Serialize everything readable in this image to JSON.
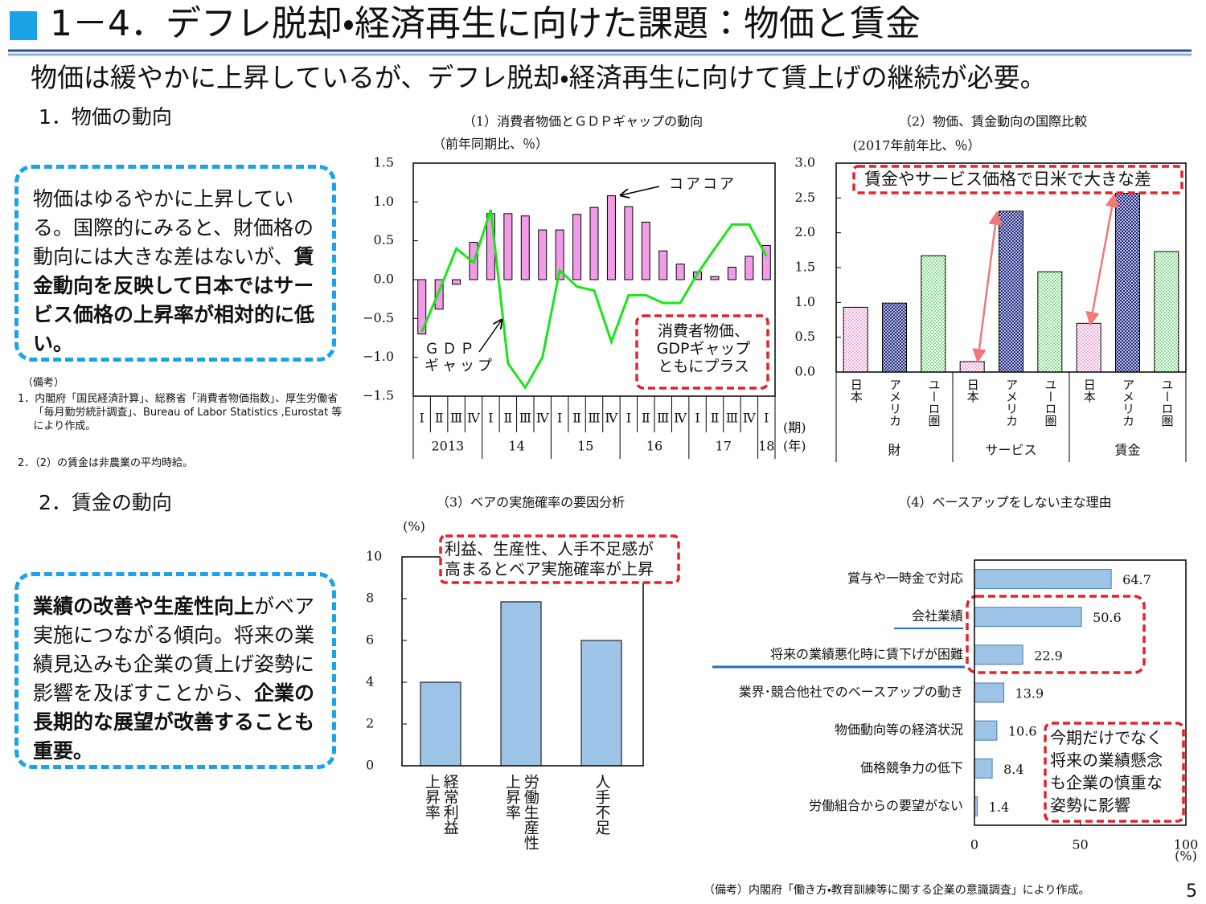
{
  "header": {
    "title": "1－4．デフレ脱却・経済再生に向けた課題：物価と賃金",
    "subtitle": "物価は緩やかに上昇しているが、デフレ脱却・経済再生に向けて賃上げの継続が必要。"
  },
  "sections": [
    "1．物価の動向",
    "2．賃金の動向"
  ],
  "boxes": [
    {
      "runs": [
        {
          "text": "物価はゆるやかに上昇している。国際的にみると、財価格の動向には大きな差はないが、",
          "bold": false
        },
        {
          "text": "賃金動向を反映して日本ではサービス価格の上昇率が相対的に低い。",
          "bold": true
        }
      ]
    },
    {
      "runs": [
        {
          "text": "業績の改善や生産性向上",
          "bold": true
        },
        {
          "text": "がベア実施につながる傾向。将来の業績見込みも企業の賃上げ姿勢に影響を及ぼすことから、",
          "bold": false
        },
        {
          "text": "企業の長期的な展望が改善することも重要。",
          "bold": true
        }
      ]
    }
  ],
  "notes": {
    "top": [
      "（備考）",
      "1．内閣府「国民経済計算」、総務省「消費者物価指数」、厚生労働省「毎月勤労統計調査」、Bureau of Labor Statistics ,Eurostat 等により作成。",
      "2．（2）の賃金は非農業の平均時給。"
    ],
    "bottom": "（備考）内閣府「働き方・教育訓練等に関する企業の意識調査」により作成。"
  },
  "page_number": "5",
  "chart_data": [
    {
      "type": "combo",
      "title": "（1）消費者物価とＧＤＰギャップの動向",
      "subtitle": "（前年同期比、％）",
      "categories": [
        "Ⅰ",
        "Ⅱ",
        "Ⅲ",
        "Ⅳ",
        "Ⅰ",
        "Ⅱ",
        "Ⅲ",
        "Ⅳ",
        "Ⅰ",
        "Ⅱ",
        "Ⅲ",
        "Ⅳ",
        "Ⅰ",
        "Ⅱ",
        "Ⅲ",
        "Ⅳ",
        "Ⅰ",
        "Ⅱ",
        "Ⅲ",
        "Ⅳ",
        "Ⅰ"
      ],
      "years": [
        "2013",
        "14",
        "15",
        "16",
        "17",
        "18"
      ],
      "x_label": "(期)",
      "year_label": "(年)",
      "ylim": [
        -1.5,
        1.5
      ],
      "yticks": [
        1.5,
        {
          "value": 1,
          "label": "1.0"
        },
        0.5,
        {
          "value": 0,
          "label": "0.0"
        },
        {
          "value": -0.5,
          "label": "−0.5"
        },
        {
          "value": -1,
          "label": "−1.0"
        },
        {
          "value": -1.5,
          "label": "−1.5"
        }
      ],
      "series": [
        {
          "name": "コアコア",
          "type": "bar",
          "color": "#f29ce8",
          "values": [
            -0.7,
            -0.38,
            -0.06,
            0.48,
            0.85,
            0.85,
            0.82,
            0.64,
            0.64,
            0.84,
            0.93,
            1.08,
            0.94,
            0.74,
            0.37,
            0.2,
            0.1,
            0.04,
            0.16,
            0.3,
            0.44
          ]
        },
        {
          "name": "ＧＤＰ\nギャップ",
          "type": "line",
          "color": "#19e619",
          "values": [
            -0.67,
            -0.15,
            0.4,
            0.22,
            0.9,
            -1.08,
            -1.39,
            -1.0,
            0.12,
            -0.09,
            -0.14,
            -0.8,
            -0.2,
            -0.2,
            -0.3,
            -0.3,
            0.08,
            0.4,
            0.71,
            0.71,
            0.3
          ]
        }
      ],
      "annotation": "消費者物価、\nGDPギャップ\nともにプラス"
    },
    {
      "type": "bar",
      "title": "（2）物価、賃金動向の国際比較",
      "subtitle": "(2017年前年比、％）",
      "categories": [
        "財",
        "サービス",
        "賃金"
      ],
      "ylim": [
        0,
        3
      ],
      "yticks": [
        {
          "value": 3,
          "label": "3.0"
        },
        2.5,
        {
          "value": 2,
          "label": "2.0"
        },
        1.5,
        {
          "value": 1,
          "label": "1.0"
        },
        0.5,
        {
          "value": 0,
          "label": "0.0"
        }
      ],
      "series": [
        {
          "name": "日本",
          "color": "#f06cc0",
          "pattern": "dots",
          "values": [
            0.93,
            0.15,
            0.7
          ]
        },
        {
          "name": "アメリカ",
          "color": "#1a237e",
          "pattern": "hatch",
          "values": [
            0.99,
            2.31,
            2.57
          ]
        },
        {
          "name": "ユーロ圏",
          "color": "#2ecc40",
          "pattern": "dots",
          "values": [
            1.67,
            1.44,
            1.73
          ]
        }
      ],
      "annotation": "賃金やサービス価格で日米で大きな差"
    },
    {
      "type": "bar",
      "title": "（3）ベアの実施確率の要因分析",
      "y_label": "(%)",
      "categories": [
        "経常利益\n上昇率",
        "労働生産性\n上昇率",
        "人手不足"
      ],
      "values": [
        4.0,
        7.85,
        6.0
      ],
      "color": "#9dc3e6",
      "ylim": [
        0,
        10
      ],
      "yticks": [
        0,
        2,
        4,
        6,
        8,
        10
      ],
      "annotation": "利益、生産性、人手不足感が\n高まるとベア実施確率が上昇"
    },
    {
      "type": "barh",
      "title": "（4）ベースアップをしない主な理由",
      "x_label": "(%)",
      "categories": [
        "賞与や一時金で対応",
        "会社業績",
        "将来の業績悪化時に賃下げが困難",
        "業界･競合他社でのベースアップの動き",
        "物価動向等の経済状況",
        "価格競争力の低下",
        "労働組合からの要望がない"
      ],
      "values": [
        64.7,
        50.6,
        22.9,
        13.9,
        10.6,
        8.4,
        1.4
      ],
      "color": "#9dc3e6",
      "xlim": [
        0,
        100
      ],
      "xticks": [
        0,
        50,
        100
      ],
      "annotation": "今期だけでなく\n将来の業績懸念\nも企業の慎重な\n姿勢に影響"
    }
  ]
}
